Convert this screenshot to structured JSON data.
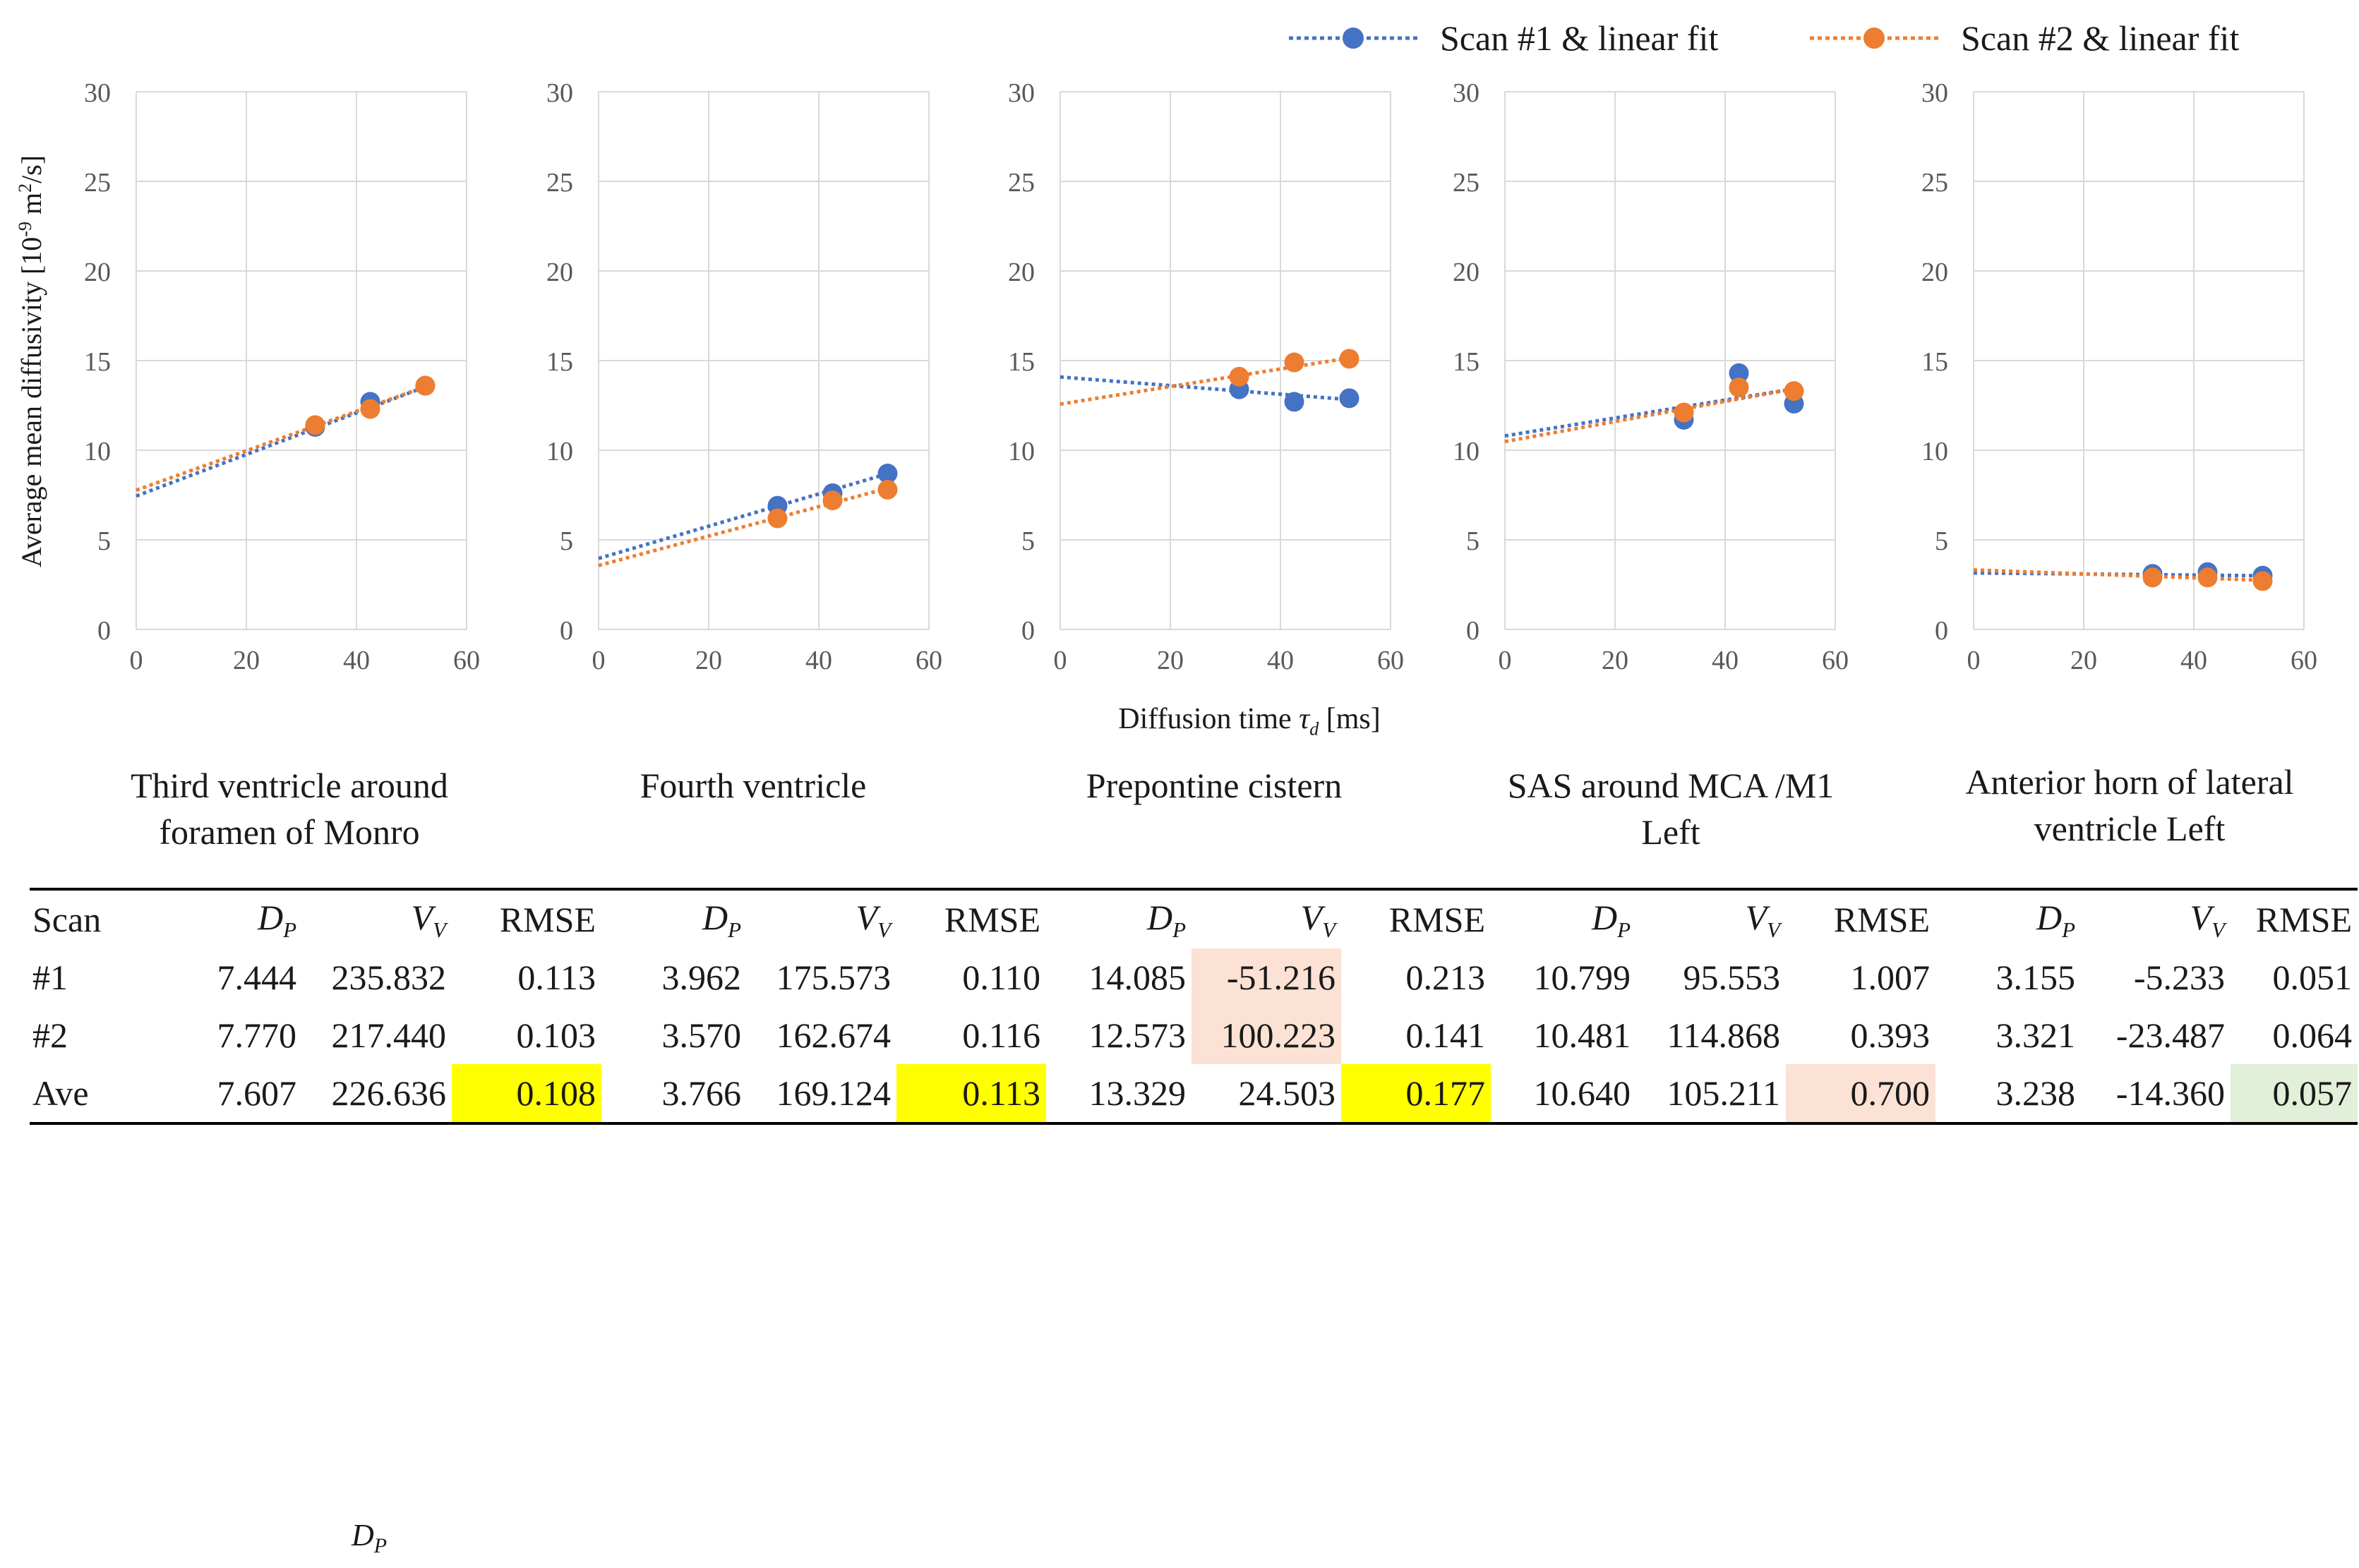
{
  "legend": [
    {
      "label": "Scan #1 & linear fit",
      "color": "#4472c4"
    },
    {
      "label": "Scan #2 & linear fit",
      "color": "#ed7d31"
    }
  ],
  "chart_data": [
    {
      "type": "scatter",
      "title": "Third ventricle around foramen of Monro",
      "xlim": [
        0,
        60
      ],
      "ylim": [
        0,
        30
      ],
      "xticks": [
        "0",
        "20",
        "40",
        "60"
      ],
      "yticks": [
        "0",
        "5",
        "10",
        "15",
        "20",
        "25",
        "30"
      ],
      "ylabel": "Average mean diffusivity [10-9 m2/s]",
      "xlabel": "Diffusion time τd [ms]",
      "grid": true,
      "series": [
        {
          "name": "Scan #1",
          "color": "#4472c4",
          "x": [
            32.5,
            42.5,
            52.5
          ],
          "y": [
            11.3,
            12.7,
            13.6
          ],
          "fit": {
            "intercept": 7.444,
            "slope": 0.116
          }
        },
        {
          "name": "Scan #2",
          "color": "#ed7d31",
          "x": [
            32.5,
            42.5,
            52.5
          ],
          "y": [
            11.4,
            12.3,
            13.6
          ],
          "fit": {
            "intercept": 7.77,
            "slope": 0.11
          }
        }
      ]
    },
    {
      "type": "scatter",
      "title": "Fourth ventricle",
      "xlim": [
        0,
        60
      ],
      "ylim": [
        0,
        30
      ],
      "xticks": [
        "0",
        "20",
        "40",
        "60"
      ],
      "yticks": [
        "0",
        "5",
        "10",
        "15",
        "20",
        "25",
        "30"
      ],
      "grid": true,
      "series": [
        {
          "name": "Scan #1",
          "color": "#4472c4",
          "x": [
            32.5,
            42.5,
            52.5
          ],
          "y": [
            6.9,
            7.6,
            8.7
          ],
          "fit": {
            "intercept": 3.962,
            "slope": 0.09
          }
        },
        {
          "name": "Scan #2",
          "color": "#ed7d31",
          "x": [
            32.5,
            42.5,
            52.5
          ],
          "y": [
            6.2,
            7.2,
            7.8
          ],
          "fit": {
            "intercept": 3.57,
            "slope": 0.082
          }
        }
      ]
    },
    {
      "type": "scatter",
      "title": "Prepontine cistern",
      "xlim": [
        0,
        60
      ],
      "ylim": [
        0,
        30
      ],
      "xticks": [
        "0",
        "20",
        "40",
        "60"
      ],
      "yticks": [
        "0",
        "5",
        "10",
        "15",
        "20",
        "25",
        "30"
      ],
      "grid": true,
      "series": [
        {
          "name": "Scan #1",
          "color": "#4472c4",
          "x": [
            32.5,
            42.5,
            52.5
          ],
          "y": [
            13.4,
            12.7,
            12.9
          ],
          "fit": {
            "intercept": 14.085,
            "slope": -0.024
          }
        },
        {
          "name": "Scan #2",
          "color": "#ed7d31",
          "x": [
            32.5,
            42.5,
            52.5
          ],
          "y": [
            14.1,
            14.9,
            15.1
          ],
          "fit": {
            "intercept": 12.573,
            "slope": 0.049
          }
        }
      ]
    },
    {
      "type": "scatter",
      "title": "SAS around MCA /M1 Left",
      "xlim": [
        0,
        60
      ],
      "ylim": [
        0,
        30
      ],
      "xticks": [
        "0",
        "20",
        "40",
        "60"
      ],
      "yticks": [
        "0",
        "5",
        "10",
        "15",
        "20",
        "25",
        "30"
      ],
      "grid": true,
      "series": [
        {
          "name": "Scan #1",
          "color": "#4472c4",
          "x": [
            32.5,
            42.5,
            52.5
          ],
          "y": [
            11.7,
            14.3,
            12.6
          ],
          "fit": {
            "intercept": 10.799,
            "slope": 0.05
          }
        },
        {
          "name": "Scan #2",
          "color": "#ed7d31",
          "x": [
            32.5,
            42.5,
            52.5
          ],
          "y": [
            12.1,
            13.5,
            13.3
          ],
          "fit": {
            "intercept": 10.481,
            "slope": 0.056
          }
        }
      ]
    },
    {
      "type": "scatter",
      "title": "Anterior horn of lateral ventricle Left",
      "xlim": [
        0,
        60
      ],
      "ylim": [
        0,
        30
      ],
      "xticks": [
        "0",
        "20",
        "40",
        "60"
      ],
      "yticks": [
        "0",
        "5",
        "10",
        "15",
        "20",
        "25",
        "30"
      ],
      "grid": true,
      "series": [
        {
          "name": "Scan #1",
          "color": "#4472c4",
          "x": [
            32.5,
            42.5,
            52.5
          ],
          "y": [
            3.1,
            3.2,
            3.0
          ],
          "fit": {
            "intercept": 3.155,
            "slope": -0.003
          }
        },
        {
          "name": "Scan #2",
          "color": "#ed7d31",
          "x": [
            32.5,
            42.5,
            52.5
          ],
          "y": [
            2.9,
            2.9,
            2.7
          ],
          "fit": {
            "intercept": 3.321,
            "slope": -0.011
          }
        }
      ]
    }
  ],
  "axis": {
    "ylabel": "Average mean diffusivity [10",
    "ylabel_exp": "-9",
    "ylabel_mid": " m",
    "ylabel_exp2": "2",
    "ylabel_end": "/s]",
    "xlabel_pre": "Diffusion time ",
    "xlabel_sym": "τ",
    "xlabel_sub": "d",
    "xlabel_post": " [ms]"
  },
  "regions": [
    {
      "line1": "Third ventricle around",
      "line2": "foramen of Monro"
    },
    {
      "line1": "Fourth ventricle",
      "line2": ""
    },
    {
      "line1": "Prepontine cistern",
      "line2": ""
    },
    {
      "line1": "SAS around MCA /M1",
      "line2": "Left"
    },
    {
      "line1": "Anterior horn of lateral",
      "line2": "ventricle Left"
    }
  ],
  "table": {
    "header": {
      "scan": "Scan",
      "dp": "D",
      "dp_sub": "P",
      "vv": "V",
      "vv_sub": "V",
      "rmse": "RMSE"
    },
    "rows": [
      {
        "label": "#1",
        "cells": [
          "7.444",
          "235.832",
          "0.113",
          "3.962",
          "175.573",
          "0.110",
          "14.085",
          "-51.216",
          "0.213",
          "10.799",
          "95.553",
          "1.007",
          "3.155",
          "-5.233",
          "0.051"
        ]
      },
      {
        "label": "#2",
        "cells": [
          "7.770",
          "217.440",
          "0.103",
          "3.570",
          "162.674",
          "0.116",
          "12.573",
          "100.223",
          "0.141",
          "10.481",
          "114.868",
          "0.393",
          "3.321",
          "-23.487",
          "0.064"
        ]
      },
      {
        "label": "Ave",
        "cells": [
          "7.607",
          "226.636",
          "0.108",
          "3.766",
          "169.124",
          "0.113",
          "13.329",
          "24.503",
          "0.177",
          "10.640",
          "105.211",
          "0.700",
          "3.238",
          "-14.360",
          "0.057"
        ]
      }
    ]
  },
  "stray_label": {
    "sym": "D",
    "sub": "P"
  }
}
